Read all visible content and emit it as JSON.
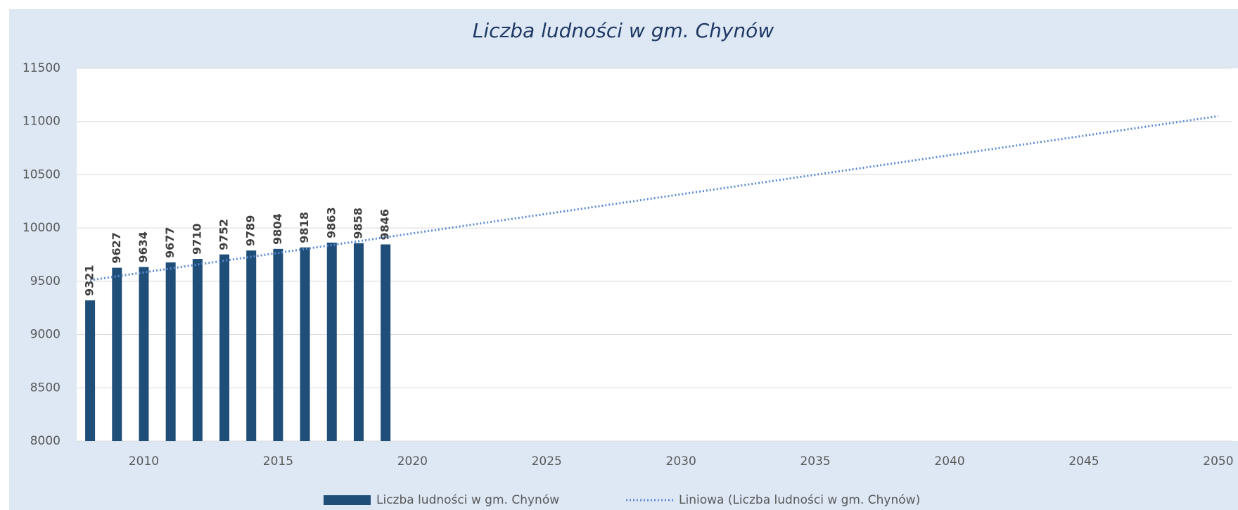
{
  "chart_data": {
    "type": "bar",
    "title": "Liczba ludności w gm. Chynów",
    "x": [
      2008,
      2009,
      2010,
      2011,
      2012,
      2013,
      2014,
      2015,
      2016,
      2017,
      2018,
      2019
    ],
    "series": [
      {
        "name": "Liczba ludności w gm. Chynów",
        "color": "#1f4e79",
        "values": [
          9321,
          9627,
          9634,
          9677,
          9710,
          9752,
          9789,
          9804,
          9818,
          9863,
          9858,
          9846
        ]
      },
      {
        "name": "Liniowa (Liczba ludności w gm. Chynów)",
        "color": "#5b8bd0",
        "type": "line",
        "style": "dotted",
        "x": [
          2008,
          2050
        ],
        "values": [
          9510,
          11050
        ]
      }
    ],
    "xlim": [
      2007.5,
      2050.5
    ],
    "xticks": [
      2010,
      2015,
      2020,
      2025,
      2030,
      2035,
      2040,
      2045,
      2050
    ],
    "ylim": [
      8000,
      11500
    ],
    "yticks": [
      8000,
      8500,
      9000,
      9500,
      10000,
      10500,
      11000,
      11500
    ],
    "grid": true,
    "legend": "bottom"
  }
}
